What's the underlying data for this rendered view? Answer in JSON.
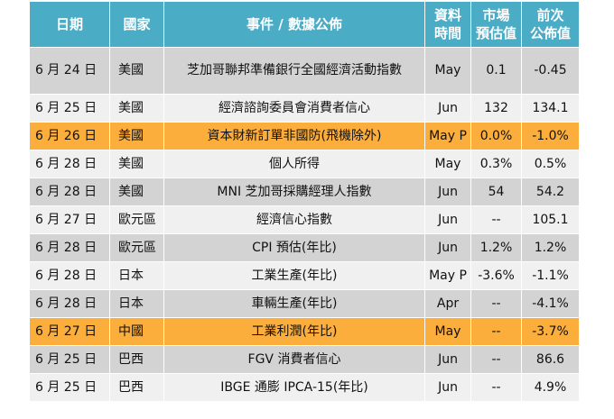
{
  "headers": {
    "date": "日期",
    "country": "國家",
    "event": "事件 / 數據公佈",
    "period_line1": "資料",
    "period_line2": "時間",
    "estimate_line1": "市場",
    "estimate_line2": "預估值",
    "previous_line1": "前次",
    "previous_line2": "公佈值"
  },
  "rows": [
    {
      "date": "6 月 24 日",
      "country": "美國",
      "event": "芝加哥聯邦準備銀行全國經濟活動指數",
      "period": "May",
      "estimate": "0.1",
      "previous": "-0.45",
      "highlight": false
    },
    {
      "date": "6 月 25 日",
      "country": "美國",
      "event": "經濟諮詢委員會消費者信心",
      "period": "Jun",
      "estimate": "132",
      "previous": "134.1",
      "highlight": false
    },
    {
      "date": "6 月 26 日",
      "country": "美國",
      "event": "資本財新訂單非國防(飛機除外)",
      "period": "May P",
      "estimate": "0.0%",
      "previous": "-1.0%",
      "highlight": true
    },
    {
      "date": "6 月 28 日",
      "country": "美國",
      "event": "個人所得",
      "period": "May",
      "estimate": "0.3%",
      "previous": "0.5%",
      "highlight": false
    },
    {
      "date": "6 月 28 日",
      "country": "美國",
      "event": "MNI 芝加哥採購經理人指數",
      "period": "Jun",
      "estimate": "54",
      "previous": "54.2",
      "highlight": false
    },
    {
      "date": "6 月 27 日",
      "country": "歐元區",
      "event": "經濟信心指數",
      "period": "Jun",
      "estimate": "--",
      "previous": "105.1",
      "highlight": false
    },
    {
      "date": "6 月 28 日",
      "country": "歐元區",
      "event": "CPI 預估(年比)",
      "period": "Jun",
      "estimate": "1.2%",
      "previous": "1.2%",
      "highlight": false
    },
    {
      "date": "6 月 28 日",
      "country": "日本",
      "event": "工業生產(年比)",
      "period": "May P",
      "estimate": "-3.6%",
      "previous": "-1.1%",
      "highlight": false
    },
    {
      "date": "6 月 28 日",
      "country": "日本",
      "event": "車輛生產(年比)",
      "period": "Apr",
      "estimate": "--",
      "previous": "-4.1%",
      "highlight": false
    },
    {
      "date": "6 月 27 日",
      "country": "中國",
      "event": "工業利潤(年比)",
      "period": "May",
      "estimate": "--",
      "previous": "-3.7%",
      "highlight": true
    },
    {
      "date": "6 月 25 日",
      "country": "巴西",
      "event": "FGV 消費者信心",
      "period": "Jun",
      "estimate": "--",
      "previous": "86.6",
      "highlight": false
    },
    {
      "date": "6 月 25 日",
      "country": "巴西",
      "event": "IBGE 通膨 IPCA-15(年比)",
      "period": "Jun",
      "estimate": "--",
      "previous": "4.9%",
      "highlight": false
    }
  ],
  "colors": {
    "header_bg": "#4bacc6",
    "row_alt": "#d3d3d3",
    "row_plain": "#f0f0f0",
    "highlight": "#fbae3c"
  }
}
